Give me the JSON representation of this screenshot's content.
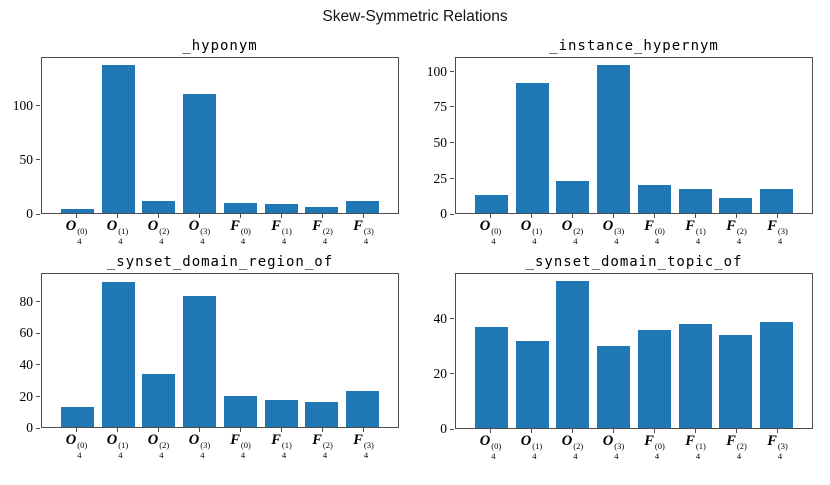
{
  "suptitle": "Skew-Symmetric Relations",
  "colors": {
    "bar_fill": "#1f77b4",
    "axis_line": "#4d4d4d"
  },
  "category_labels": [
    {
      "base": "O",
      "sub": "4",
      "sup": "(0)"
    },
    {
      "base": "O",
      "sub": "4",
      "sup": "(1)"
    },
    {
      "base": "O",
      "sub": "4",
      "sup": "(2)"
    },
    {
      "base": "O",
      "sub": "4",
      "sup": "(3)"
    },
    {
      "base": "F",
      "sub": "4",
      "sup": "(0)"
    },
    {
      "base": "F",
      "sub": "4",
      "sup": "(1)"
    },
    {
      "base": "F",
      "sub": "4",
      "sup": "(2)"
    },
    {
      "base": "F",
      "sub": "4",
      "sup": "(3)"
    }
  ],
  "chart_data": [
    {
      "type": "bar",
      "title": "_hyponym",
      "categories": [
        "O_4^(0)",
        "O_4^(1)",
        "O_4^(2)",
        "O_4^(3)",
        "F_4^(0)",
        "F_4^(1)",
        "F_4^(2)",
        "F_4^(3)"
      ],
      "values": [
        4,
        138,
        11,
        111,
        9,
        8,
        6,
        11
      ],
      "yticks": [
        0,
        50,
        100
      ],
      "ylim": [
        0,
        145
      ],
      "grid": false,
      "legend": null
    },
    {
      "type": "bar",
      "title": "_instance_hypernym",
      "categories": [
        "O_4^(0)",
        "O_4^(1)",
        "O_4^(2)",
        "O_4^(3)",
        "F_4^(0)",
        "F_4^(1)",
        "F_4^(2)",
        "F_4^(3)"
      ],
      "values": [
        13,
        92,
        23,
        105,
        20,
        17,
        11,
        17
      ],
      "yticks": [
        0,
        25,
        50,
        75,
        100
      ],
      "ylim": [
        0,
        110
      ],
      "grid": false,
      "legend": null
    },
    {
      "type": "bar",
      "title": "_synset_domain_region_of",
      "categories": [
        "O_4^(0)",
        "O_4^(1)",
        "O_4^(2)",
        "O_4^(3)",
        "F_4^(0)",
        "F_4^(1)",
        "F_4^(2)",
        "F_4^(3)"
      ],
      "values": [
        13,
        93,
        34,
        84,
        20,
        17,
        16,
        23
      ],
      "yticks": [
        0,
        20,
        40,
        60,
        80
      ],
      "ylim": [
        0,
        98
      ],
      "grid": false,
      "legend": null
    },
    {
      "type": "bar",
      "title": "_synset_domain_topic_of",
      "categories": [
        "O_4^(0)",
        "O_4^(1)",
        "O_4^(2)",
        "O_4^(3)",
        "F_4^(0)",
        "F_4^(1)",
        "F_4^(2)",
        "F_4^(3)"
      ],
      "values": [
        37,
        32,
        54,
        30,
        36,
        38,
        34,
        39
      ],
      "yticks": [
        0,
        20,
        40
      ],
      "ylim": [
        0,
        56.5
      ],
      "grid": false,
      "legend": null
    }
  ]
}
